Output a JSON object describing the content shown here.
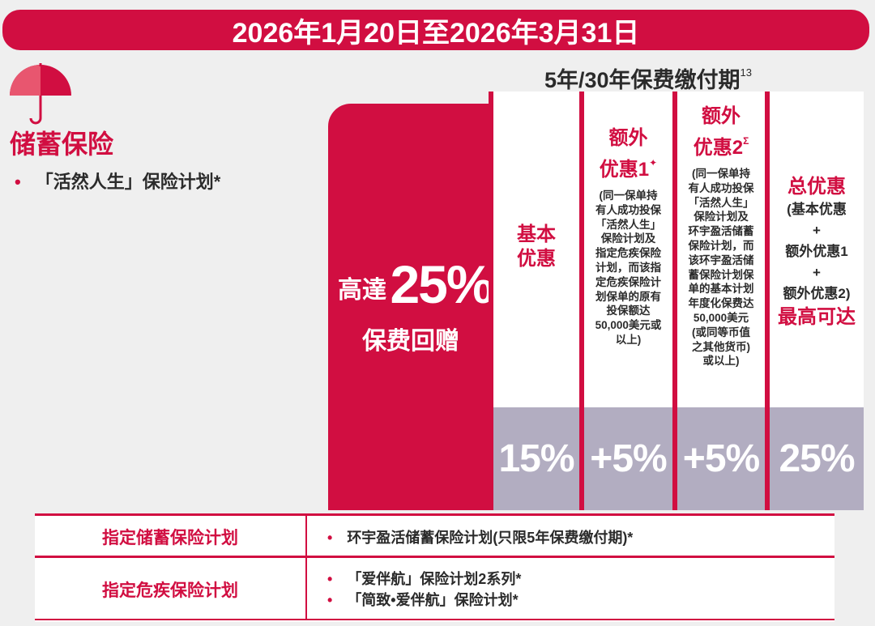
{
  "header": {
    "date_range": "2026年1月20日至2026年3月31日",
    "payment_term": "5年/30年保费缴付期",
    "payment_term_note": "13"
  },
  "left": {
    "icon": "umbrella-icon",
    "category": "储蓄保险",
    "plan": "「活然人生」保险计划*"
  },
  "highlight": {
    "prefix": "高達",
    "percent": "25%",
    "label": "保费回赠"
  },
  "columns": [
    {
      "title": "基本\n优惠",
      "value": "15%"
    },
    {
      "title_line1": "额外",
      "title_line2": "优惠1",
      "title_mark": "✦",
      "desc": "(同一保单持\n有人成功投保\n「活然人生」\n保险计划及\n指定危疾保险\n计划，而该指\n定危疾保险计\n划保单的原有\n投保额达\n50,000美元或\n以上)",
      "value": "+5%"
    },
    {
      "title_line1": "额外",
      "title_line2": "优惠2",
      "title_mark": "Σ",
      "desc": "(同一保单持\n有人成功投保\n「活然人生」\n保险计划及\n环宇盈活储蓄\n保险计划，而\n该环宇盈活储\n蓄保险计划保\n单的基本计划\n年度化保费达\n50,000美元\n(或同等币值\n之其他货币)\n或以上)",
      "value": "+5%"
    },
    {
      "title": "总优惠",
      "line_a": "(基本优惠",
      "plus1": "+",
      "line_b": "额外优惠1",
      "plus2": "+",
      "line_c": "额外优惠2)",
      "line_d": "最高可达",
      "value": "25%"
    }
  ],
  "table": {
    "rows": [
      {
        "label": "指定储蓄保险计划",
        "items": [
          "环宇盈活储蓄保险计划(只限5年保费缴付期)*"
        ]
      },
      {
        "label": "指定危疾保险计划",
        "items": [
          "「爱伴航」保险计划2系列*",
          "「简致•爱伴航」保险计划*"
        ]
      }
    ],
    "bullet": "•"
  },
  "colors": {
    "brand_red": "#d10e41",
    "lavender": "#b2adc1",
    "background": "#efefef"
  }
}
